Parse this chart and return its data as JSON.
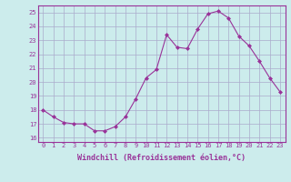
{
  "x": [
    0,
    1,
    2,
    3,
    4,
    5,
    6,
    7,
    8,
    9,
    10,
    11,
    12,
    13,
    14,
    15,
    16,
    17,
    18,
    19,
    20,
    21,
    22,
    23
  ],
  "y": [
    18.0,
    17.5,
    17.1,
    17.0,
    17.0,
    16.5,
    16.5,
    16.8,
    17.5,
    18.8,
    20.3,
    20.9,
    23.4,
    22.5,
    22.4,
    23.8,
    24.9,
    25.1,
    24.6,
    23.3,
    22.6,
    21.5,
    20.3,
    19.3
  ],
  "line_color": "#993399",
  "marker": "D",
  "marker_size": 2.0,
  "bg_color": "#ccecec",
  "grid_color": "#aaaacc",
  "xlabel": "Windchill (Refroidissement éolien,°C)",
  "xlabel_color": "#993399",
  "tick_color": "#993399",
  "spine_color": "#993399",
  "ylim": [
    15.7,
    25.5
  ],
  "yticks": [
    16,
    17,
    18,
    19,
    20,
    21,
    22,
    23,
    24,
    25
  ],
  "xlim": [
    -0.5,
    23.5
  ],
  "xticks": [
    0,
    1,
    2,
    3,
    4,
    5,
    6,
    7,
    8,
    9,
    10,
    11,
    12,
    13,
    14,
    15,
    16,
    17,
    18,
    19,
    20,
    21,
    22,
    23
  ],
  "tick_fontsize": 5.0,
  "xlabel_fontsize": 6.0
}
